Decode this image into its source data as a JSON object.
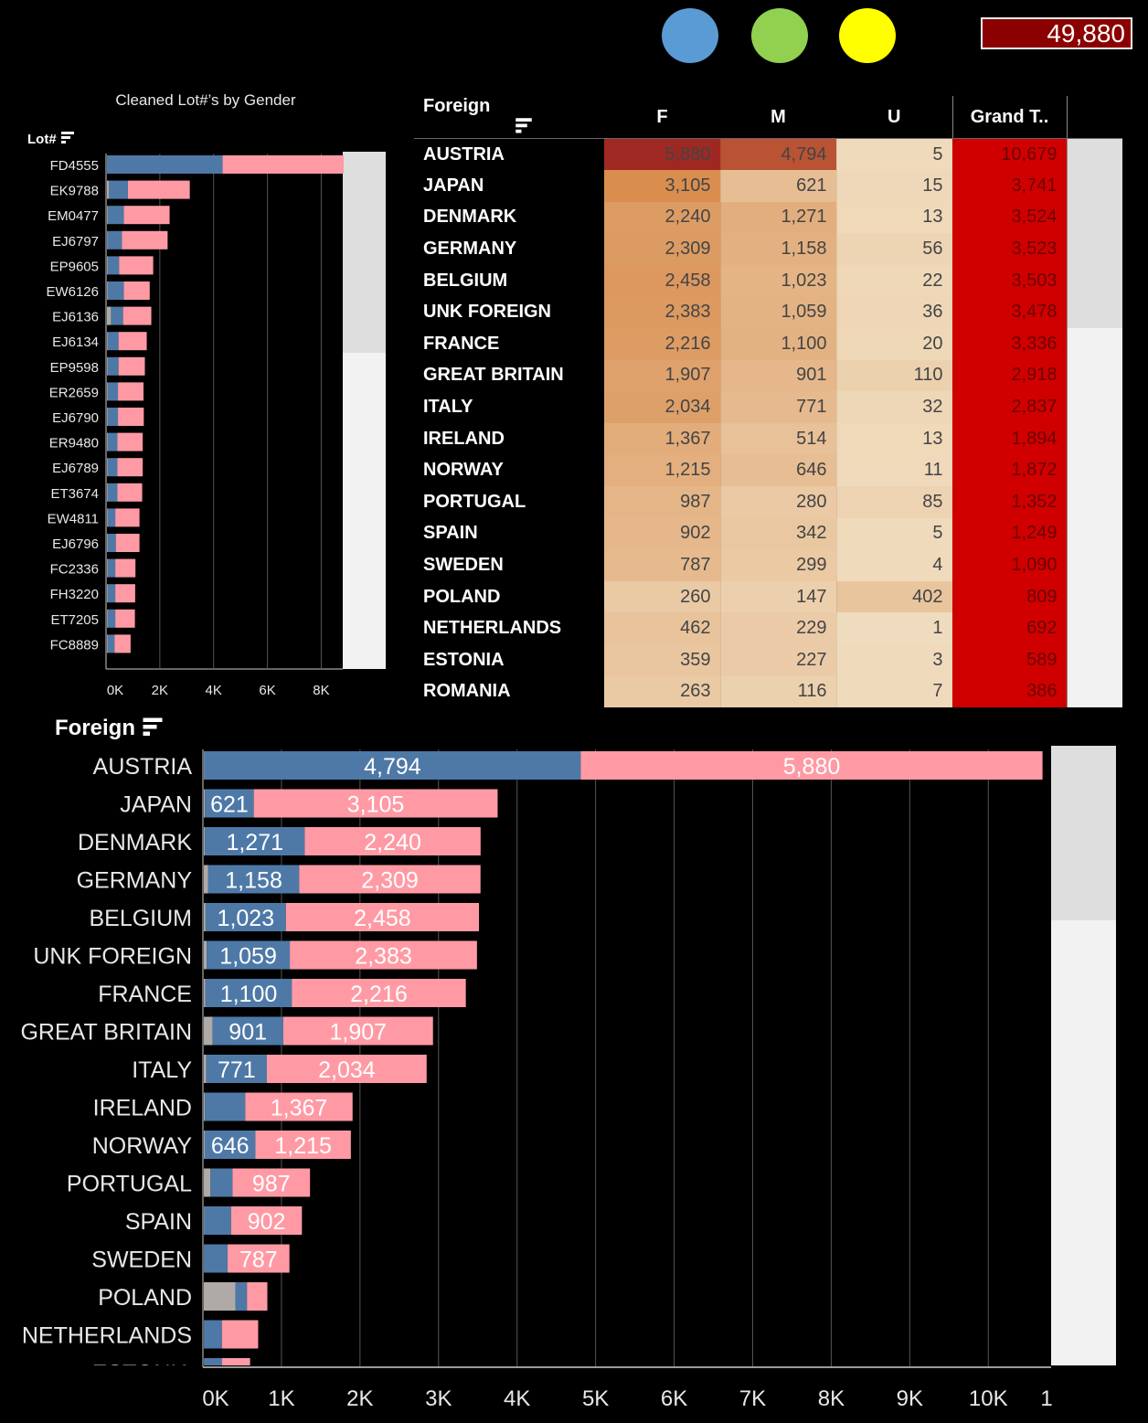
{
  "legend_dots": [
    {
      "color": "#5b9bd5"
    },
    {
      "color": "#92d050"
    },
    {
      "color": "#ffff00"
    }
  ],
  "kpi": {
    "value": "49,880"
  },
  "colors": {
    "female": "#ff9aa5",
    "male": "#4e79a7",
    "unknown": "#b0aaa6",
    "grand_total": "#d00000"
  },
  "mini_chart": {
    "title": "Cleaned Lot#’s by Gender",
    "header": "Lot#",
    "axis_ticks": [
      "0K",
      "2K",
      "4K",
      "6K",
      "8K"
    ]
  },
  "table": {
    "headers": [
      "Foreign",
      "F",
      "M",
      "U",
      "Grand T.."
    ],
    "rows": [
      {
        "country": "AUSTRIA",
        "f": "5,880",
        "m": "4,794",
        "u": "5",
        "gt": "10,679"
      },
      {
        "country": "JAPAN",
        "f": "3,105",
        "m": "621",
        "u": "15",
        "gt": "3,741"
      },
      {
        "country": "DENMARK",
        "f": "2,240",
        "m": "1,271",
        "u": "13",
        "gt": "3,524"
      },
      {
        "country": "GERMANY",
        "f": "2,309",
        "m": "1,158",
        "u": "56",
        "gt": "3,523"
      },
      {
        "country": "BELGIUM",
        "f": "2,458",
        "m": "1,023",
        "u": "22",
        "gt": "3,503"
      },
      {
        "country": "UNK FOREIGN",
        "f": "2,383",
        "m": "1,059",
        "u": "36",
        "gt": "3,478"
      },
      {
        "country": "FRANCE",
        "f": "2,216",
        "m": "1,100",
        "u": "20",
        "gt": "3,336"
      },
      {
        "country": "GREAT BRITAIN",
        "f": "1,907",
        "m": "901",
        "u": "110",
        "gt": "2,918"
      },
      {
        "country": "ITALY",
        "f": "2,034",
        "m": "771",
        "u": "32",
        "gt": "2,837"
      },
      {
        "country": "IRELAND",
        "f": "1,367",
        "m": "514",
        "u": "13",
        "gt": "1,894"
      },
      {
        "country": "NORWAY",
        "f": "1,215",
        "m": "646",
        "u": "11",
        "gt": "1,872"
      },
      {
        "country": "PORTUGAL",
        "f": "987",
        "m": "280",
        "u": "85",
        "gt": "1,352"
      },
      {
        "country": "SPAIN",
        "f": "902",
        "m": "342",
        "u": "5",
        "gt": "1,249"
      },
      {
        "country": "SWEDEN",
        "f": "787",
        "m": "299",
        "u": "4",
        "gt": "1,090"
      },
      {
        "country": "POLAND",
        "f": "260",
        "m": "147",
        "u": "402",
        "gt": "809"
      },
      {
        "country": "NETHERLANDS",
        "f": "462",
        "m": "229",
        "u": "1",
        "gt": "692"
      },
      {
        "country": "ESTONIA",
        "f": "359",
        "m": "227",
        "u": "3",
        "gt": "589"
      },
      {
        "country": "ROMANIA",
        "f": "263",
        "m": "116",
        "u": "7",
        "gt": "386"
      }
    ]
  },
  "big_chart": {
    "header": "Foreign",
    "axis_ticks": [
      "0K",
      "1K",
      "2K",
      "3K",
      "4K",
      "5K",
      "6K",
      "7K",
      "8K",
      "9K",
      "10K",
      "1"
    ]
  },
  "chart_data": [
    {
      "type": "bar",
      "orientation": "horizontal",
      "stacked": true,
      "title": "Cleaned Lot#’s by Gender",
      "ylabel": "Lot#",
      "xlim": [
        0,
        8800
      ],
      "categories": [
        "FD4555",
        "EK9788",
        "EM0477",
        "EJ6797",
        "EP9605",
        "EW6126",
        "EJ6136",
        "EJ6134",
        "EP9598",
        "ER2659",
        "EJ6790",
        "ER9480",
        "EJ6789",
        "ET3674",
        "EW4811",
        "EJ6796",
        "FC2336",
        "FH3220",
        "ET7205",
        "FC8889"
      ],
      "series": [
        {
          "values": [
            0,
            80,
            30,
            25,
            30,
            30,
            150,
            30,
            30,
            30,
            30,
            30,
            30,
            30,
            30,
            30,
            30,
            30,
            30,
            30
          ]
        },
        {
          "values": [
            4300,
            700,
            600,
            530,
            420,
            600,
            450,
            400,
            400,
            380,
            380,
            360,
            360,
            360,
            280,
            300,
            280,
            280,
            280,
            250
          ]
        },
        {
          "values": [
            4500,
            2300,
            1700,
            1700,
            1270,
            960,
            1050,
            1050,
            980,
            950,
            960,
            940,
            940,
            920,
            900,
            880,
            750,
            740,
            730,
            600
          ]
        }
      ]
    },
    {
      "type": "bar",
      "orientation": "horizontal",
      "stacked": true,
      "ylabel": "Foreign",
      "xlim": [
        0,
        10800
      ],
      "categories": [
        "AUSTRIA",
        "JAPAN",
        "DENMARK",
        "GERMANY",
        "BELGIUM",
        "UNK FOREIGN",
        "FRANCE",
        "GREAT BRITAIN",
        "ITALY",
        "IRELAND",
        "NORWAY",
        "PORTUGAL",
        "SPAIN",
        "SWEDEN",
        "POLAND",
        "NETHERLANDS",
        "ESTONIA"
      ],
      "series": [
        {
          "name": "U",
          "values": [
            5,
            15,
            13,
            56,
            22,
            36,
            20,
            110,
            32,
            13,
            11,
            85,
            5,
            4,
            402,
            1,
            3
          ]
        },
        {
          "name": "M",
          "values": [
            4794,
            621,
            1271,
            1158,
            1023,
            1059,
            1100,
            901,
            771,
            514,
            646,
            280,
            342,
            299,
            147,
            229,
            227
          ]
        },
        {
          "name": "F",
          "values": [
            5880,
            3105,
            2240,
            2309,
            2458,
            2383,
            2216,
            1907,
            2034,
            1367,
            1215,
            987,
            902,
            787,
            260,
            462,
            359
          ]
        }
      ],
      "data_labels": {
        "M": [
          "4,794",
          "621",
          "1,271",
          "1,158",
          "1,023",
          "1,059",
          "1,100",
          "901",
          "771",
          "",
          "646",
          "",
          "",
          "",
          "",
          "",
          ""
        ],
        "F": [
          "5,880",
          "3,105",
          "2,240",
          "2,309",
          "2,458",
          "2,383",
          "2,216",
          "1,907",
          "2,034",
          "1,367",
          "1,215",
          "987",
          "902",
          "787",
          "",
          "",
          ""
        ]
      }
    }
  ]
}
